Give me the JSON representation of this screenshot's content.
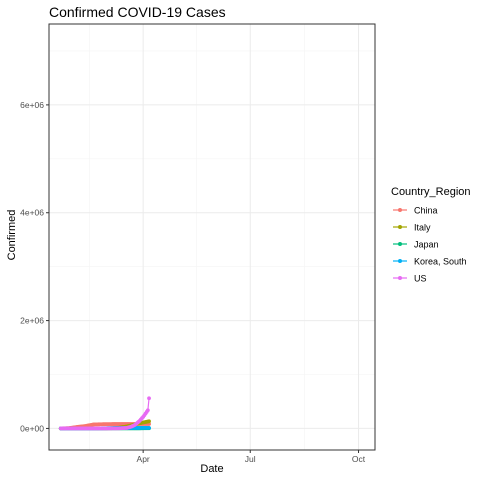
{
  "chart_data": {
    "type": "line",
    "title": "Confirmed COVID-19 Cases",
    "xlabel": "Date",
    "ylabel": "Confirmed",
    "x_axis_type": "date",
    "xlim": [
      "2020-01-12",
      "2020-10-15"
    ],
    "ylim": [
      -400000,
      7500000
    ],
    "x_ticks": [
      {
        "value": "2020-04-01",
        "label": "Apr"
      },
      {
        "value": "2020-07-01",
        "label": "Jul"
      },
      {
        "value": "2020-10-01",
        "label": "Oct"
      }
    ],
    "y_ticks": [
      {
        "value": 0,
        "label": "0e+00"
      },
      {
        "value": 2000000,
        "label": "2e+06"
      },
      {
        "value": 4000000,
        "label": "4e+06"
      },
      {
        "value": 6000000,
        "label": "6e+06"
      }
    ],
    "grid": true,
    "legend": {
      "title": "Country_Region",
      "position": "right"
    },
    "series": [
      {
        "name": "China",
        "color": "#F8766D",
        "points": [
          [
            "2020-01-22",
            548
          ],
          [
            "2020-01-29",
            6000
          ],
          [
            "2020-02-05",
            28000
          ],
          [
            "2020-02-12",
            45000
          ],
          [
            "2020-02-19",
            74000
          ],
          [
            "2020-02-26",
            78000
          ],
          [
            "2020-03-04",
            80500
          ],
          [
            "2020-03-11",
            81000
          ],
          [
            "2020-03-18",
            81000
          ],
          [
            "2020-03-25",
            81500
          ],
          [
            "2020-04-01",
            82300
          ],
          [
            "2020-04-06",
            82600
          ]
        ]
      },
      {
        "name": "Italy",
        "color": "#A3A500",
        "points": [
          [
            "2020-01-22",
            0
          ],
          [
            "2020-02-20",
            3
          ],
          [
            "2020-02-26",
            450
          ],
          [
            "2020-03-04",
            3100
          ],
          [
            "2020-03-11",
            12500
          ],
          [
            "2020-03-18",
            36000
          ],
          [
            "2020-03-25",
            74000
          ],
          [
            "2020-04-01",
            110000
          ],
          [
            "2020-04-06",
            132000
          ]
        ]
      },
      {
        "name": "Japan",
        "color": "#00BF7D",
        "points": [
          [
            "2020-01-22",
            2
          ],
          [
            "2020-02-05",
            45
          ],
          [
            "2020-02-19",
            85
          ],
          [
            "2020-03-04",
            330
          ],
          [
            "2020-03-18",
            900
          ],
          [
            "2020-04-01",
            2400
          ],
          [
            "2020-04-06",
            3900
          ]
        ]
      },
      {
        "name": "Korea, South",
        "color": "#00B0F6",
        "points": [
          [
            "2020-01-22",
            1
          ],
          [
            "2020-02-19",
            50
          ],
          [
            "2020-02-26",
            1800
          ],
          [
            "2020-03-04",
            5600
          ],
          [
            "2020-03-11",
            7800
          ],
          [
            "2020-03-18",
            8400
          ],
          [
            "2020-04-01",
            9900
          ],
          [
            "2020-04-06",
            10300
          ]
        ]
      },
      {
        "name": "US",
        "color": "#E76BF3",
        "points": [
          [
            "2020-01-22",
            1
          ],
          [
            "2020-02-19",
            15
          ],
          [
            "2020-03-04",
            150
          ],
          [
            "2020-03-11",
            1300
          ],
          [
            "2020-03-18",
            9000
          ],
          [
            "2020-03-22",
            33000
          ],
          [
            "2020-03-25",
            65000
          ],
          [
            "2020-03-29",
            140000
          ],
          [
            "2020-04-01",
            215000
          ],
          [
            "2020-04-03",
            275000
          ],
          [
            "2020-04-05",
            336000
          ],
          [
            "2020-04-06",
            560000
          ]
        ]
      }
    ]
  }
}
